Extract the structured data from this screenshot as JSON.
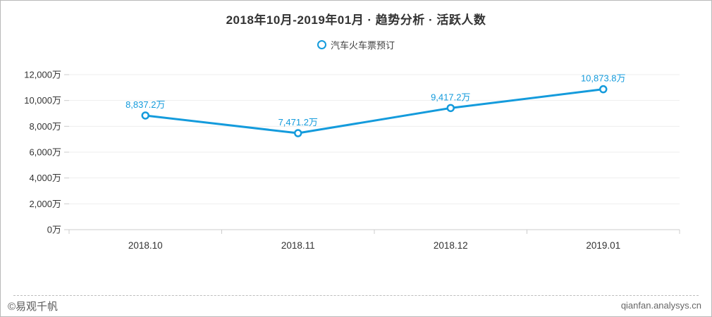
{
  "header": {
    "title": "2018年10月-2019年01月 · 趋势分析 · 活跃人数"
  },
  "legend": {
    "items": [
      {
        "label": "汽车火车票预订",
        "color": "#149BDC"
      }
    ]
  },
  "chart_data": {
    "type": "line",
    "title": "2018年10月-2019年01月 · 趋势分析 · 活跃人数",
    "categories": [
      "2018.10",
      "2018.11",
      "2018.12",
      "2019.01"
    ],
    "series": [
      {
        "name": "汽车火车票预订",
        "values": [
          8837.2,
          7471.2,
          9417.2,
          10873.8
        ],
        "point_labels": [
          "8,837.2万",
          "7,471.2万",
          "9,417.2万",
          "10,873.8万"
        ]
      }
    ],
    "xlabel": "",
    "ylabel": "",
    "ylim": [
      0,
      12000
    ],
    "yticks": [
      0,
      2000,
      4000,
      6000,
      8000,
      10000,
      12000
    ],
    "ytick_suffix": "万",
    "grid": true,
    "legend_position": "top",
    "line_color": "#149BDC"
  },
  "footer": {
    "copyright": "©易观千帆",
    "website": "qianfan.analysys.cn"
  },
  "colors": {
    "accent": "#149BDC",
    "grid_line": "#eeeeee",
    "axis_line": "#cccccc",
    "axis_text": "#333333",
    "muted_text": "#666666",
    "card_border": "#b9b9b9"
  }
}
